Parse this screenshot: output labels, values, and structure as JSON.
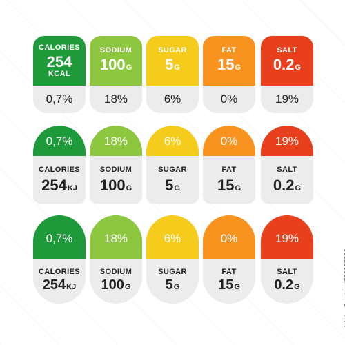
{
  "colors": {
    "calories": "#1f9a3a",
    "sodium": "#8dc63f",
    "sugar": "#f5cc1c",
    "fat": "#f7931e",
    "salt": "#e8401c"
  },
  "stock_id": "Adobe Stock | #729657880",
  "row1": [
    {
      "name": "CALORIES",
      "value": "254",
      "unit": "KCAL",
      "percent": "0,7%"
    },
    {
      "name": "SODIUM",
      "value": "100",
      "unit": "G",
      "percent": "18%"
    },
    {
      "name": "SUGAR",
      "value": "5",
      "unit": "G",
      "percent": "6%"
    },
    {
      "name": "FAT",
      "value": "15",
      "unit": "G",
      "percent": "0%"
    },
    {
      "name": "SALT",
      "value": "0.2",
      "unit": "G",
      "percent": "19%"
    }
  ],
  "row2": [
    {
      "name": "CALORIES",
      "value": "254",
      "unit": "KJ",
      "percent": "0,7%"
    },
    {
      "name": "SODIUM",
      "value": "100",
      "unit": "G",
      "percent": "18%"
    },
    {
      "name": "SUGAR",
      "value": "5",
      "unit": "G",
      "percent": "6%"
    },
    {
      "name": "FAT",
      "value": "15",
      "unit": "G",
      "percent": "0%"
    },
    {
      "name": "SALT",
      "value": "0.2",
      "unit": "G",
      "percent": "19%"
    }
  ],
  "row3": [
    {
      "name": "CALORIES",
      "value": "254",
      "unit": "KJ",
      "percent": "0,7%"
    },
    {
      "name": "SODIUM",
      "value": "100",
      "unit": "G",
      "percent": "18%"
    },
    {
      "name": "SUGAR",
      "value": "5",
      "unit": "G",
      "percent": "6%"
    },
    {
      "name": "FAT",
      "value": "15",
      "unit": "G",
      "percent": "0%"
    },
    {
      "name": "SALT",
      "value": "0.2",
      "unit": "G",
      "percent": "19%"
    }
  ]
}
